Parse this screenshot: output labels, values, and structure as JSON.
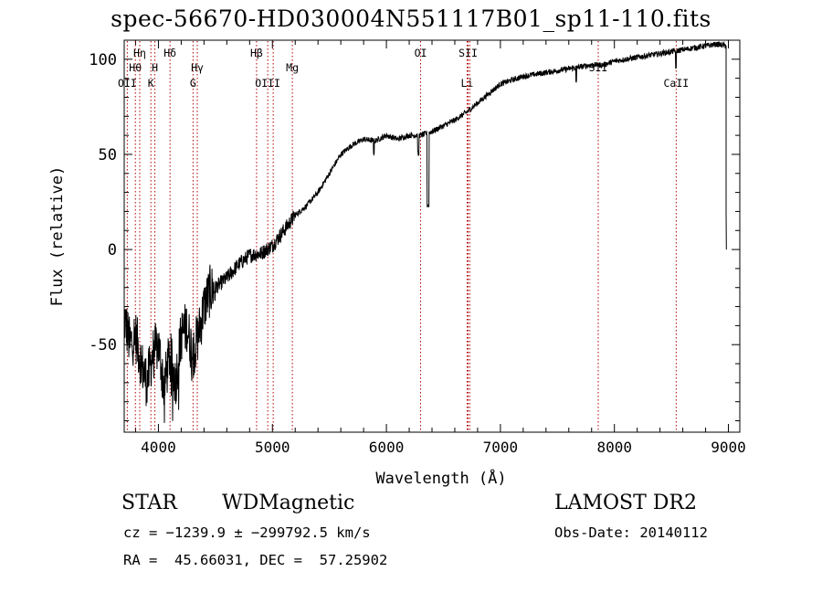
{
  "chart_data": {
    "type": "line",
    "title": "spec-56670-HD030004N551117B01_sp11-110.fits",
    "xlabel": "Wavelength (Å)",
    "ylabel": "Flux (relative)",
    "xlim": [
      3700,
      9100
    ],
    "ylim": [
      -96,
      110
    ],
    "x_ticks": [
      4000,
      5000,
      6000,
      7000,
      8000,
      9000
    ],
    "y_ticks": [
      -50,
      0,
      50,
      100
    ],
    "grid": false,
    "series": [
      {
        "x": [
          3700,
          3750,
          3800,
          3850,
          3900,
          3950,
          4000,
          4050,
          4100,
          4150,
          4200,
          4250,
          4300,
          4350,
          4400,
          4450,
          4500,
          4600,
          4700,
          4800,
          4900,
          5000,
          5100,
          5200,
          5300,
          5400,
          5500,
          5600,
          5700,
          5800,
          5900,
          6000,
          6100,
          6200,
          6300,
          6400,
          6500,
          6600,
          6700,
          6800,
          6900,
          7000,
          7100,
          7200,
          7300,
          7400,
          7500,
          7600,
          7700,
          7800,
          7900,
          8000,
          8100,
          8200,
          8300,
          8400,
          8500,
          8600,
          8700,
          8800,
          8900,
          8980
        ],
        "values": [
          -35,
          -50,
          -45,
          -60,
          -70,
          -55,
          -50,
          -72,
          -55,
          -70,
          -45,
          -40,
          -55,
          -45,
          -30,
          -22,
          -20,
          -15,
          -8,
          -3,
          -2,
          2,
          10,
          18,
          23,
          30,
          40,
          50,
          55,
          58,
          57,
          60,
          58,
          60,
          60,
          62,
          65,
          68,
          72,
          77,
          82,
          87,
          89,
          91,
          92,
          93,
          94,
          95,
          96,
          97,
          97,
          99,
          100,
          101,
          102,
          103,
          104,
          105,
          106,
          107,
          108,
          107
        ]
      }
    ],
    "lines": [
      {
        "label": "OII",
        "x": 3727,
        "row": 2
      },
      {
        "label": "Hθ",
        "x": 3798,
        "row": 1
      },
      {
        "label": "Hη",
        "x": 3836,
        "row": 0
      },
      {
        "label": "K",
        "x": 3934,
        "row": 2
      },
      {
        "label": "H",
        "x": 3969,
        "row": 1
      },
      {
        "label": "Hδ",
        "x": 4102,
        "row": 0
      },
      {
        "label": "G",
        "x": 4304,
        "row": 2
      },
      {
        "label": "Hγ",
        "x": 4341,
        "row": 1
      },
      {
        "label": "Hβ",
        "x": 4861,
        "row": 0
      },
      {
        "label": "OIII",
        "x": 4959,
        "row": 2
      },
      {
        "label": "OIII",
        "x": 5007,
        "row": null
      },
      {
        "label": "Mg",
        "x": 5175,
        "row": 1
      },
      {
        "label": "OI",
        "x": 6300,
        "row": 0
      },
      {
        "label": "Li",
        "x": 6708,
        "row": 2
      },
      {
        "label": "SII",
        "x": 6717,
        "row": 0
      },
      {
        "label": "SII",
        "x": 6731,
        "row": null
      },
      {
        "label": "SII",
        "x": 7858,
        "row": 1
      },
      {
        "label": "CaII",
        "x": 8542,
        "row": 2
      }
    ]
  },
  "info": {
    "class": "STAR",
    "subclass": "WDMagnetic",
    "survey": "LAMOST DR2",
    "cz": "cz = −1239.9 ± −299792.5 km/s",
    "obs_date": "Obs-Date: 20140112",
    "coords": "RA =  45.66031, DEC =  57.25902"
  }
}
